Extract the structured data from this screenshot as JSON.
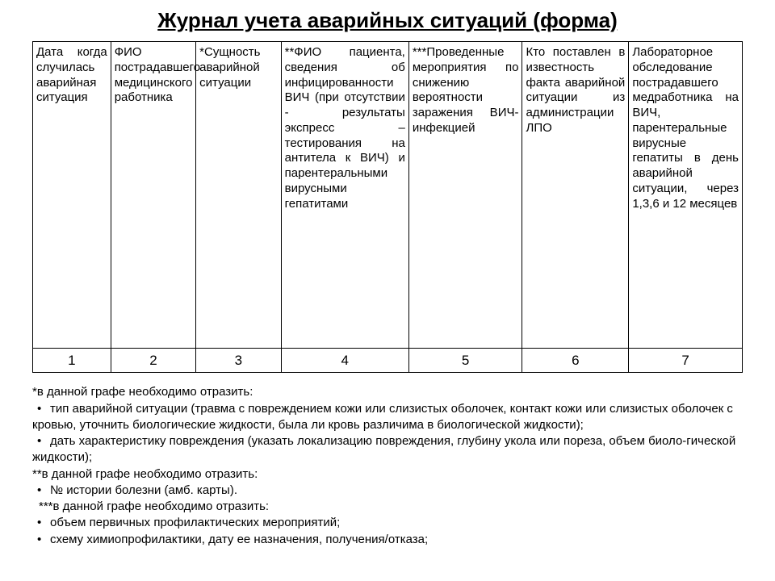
{
  "title": "Журнал учета аварийных ситуаций (форма)",
  "columns": {
    "c1": "Дата когда случилась аварийная ситуация",
    "c2": "ФИО пострадавшего медицинского работника",
    "c3": "*Сущность аварийной ситуации",
    "c4": "**ФИО пациента, сведения об инфицированности ВИЧ (при отсутствии - результаты экспресс – тестирования на антитела к ВИЧ) и парентеральными вирусными гепатитами",
    "c5": "***Проведенные мероприятия по снижению вероятности заражения ВИЧ-инфекцией",
    "c6": "Кто поставлен в известность факта аварийной ситуации из администрации ЛПО",
    "c7": "Лабораторное обследование пострадавшего медработника на ВИЧ, парентеральные вирусные гепатиты в день аварийной ситуации, через 1,3,6 и 12 месяцев"
  },
  "numbers": {
    "n1": "1",
    "n2": "2",
    "n3": "3",
    "n4": "4",
    "n5": "5",
    "n6": "6",
    "n7": "7"
  },
  "col_widths": [
    "11%",
    "12%",
    "12%",
    "18%",
    "16%",
    "15%",
    "16%"
  ],
  "notes": {
    "l1": "*в данной графе необходимо отразить:",
    "l2": "тип аварийной ситуации (травма с повреждением кожи или слизистых оболочек, контакт кожи или слизистых оболочек с кровью, уточнить биологические жидкости, была ли кровь различима в биологической жидкости);",
    "l3": "дать характеристику повреждения (указать локализацию повреждения, глубину укола или пореза, объем биоло-гической жидкости);",
    "l4": "**в данной графе необходимо отразить:",
    "l5": "№ истории болезни (амб. карты).",
    "l6": "***в данной графе необходимо отразить:",
    "l7": "объем первичных профилактических мероприятий;",
    "l8": "схему химиопрофилактики, дату ее назначения, получения/отказа;"
  },
  "style": {
    "background_color": "#ffffff",
    "text_color": "#000000",
    "border_color": "#000000",
    "title_fontsize": 26,
    "cell_fontsize": 15,
    "notes_fontsize": 15,
    "font_family": "Arial"
  }
}
